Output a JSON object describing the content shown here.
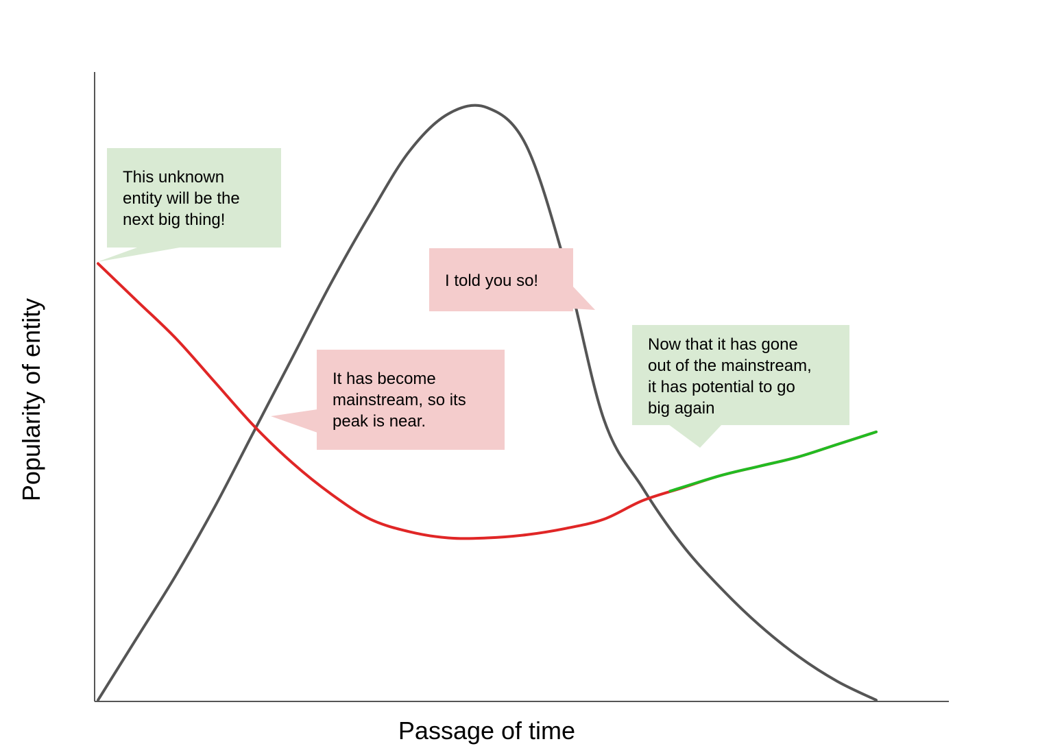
{
  "chart_data": {
    "type": "line",
    "title": "",
    "xlabel": "Passage of time",
    "ylabel": "Popularity of entity",
    "grid": false,
    "legend": "none",
    "series": [
      {
        "kind": "mainstream-popularity",
        "color": "#555555",
        "x": [
          0,
          1,
          2,
          3,
          4,
          5,
          6,
          7,
          8,
          9,
          10,
          11,
          12,
          13,
          14,
          15,
          16,
          17,
          18,
          19,
          20
        ],
        "y": [
          0,
          10,
          20,
          31,
          43,
          55,
          67,
          78,
          88,
          94,
          95,
          89,
          70,
          45,
          34,
          25,
          18,
          12,
          7,
          3,
          0
        ]
      },
      {
        "kind": "hipster-opinion",
        "color": "#e02626",
        "x": [
          0,
          1,
          2,
          3,
          4,
          5,
          6,
          7,
          8,
          9,
          10,
          11,
          12,
          13,
          14,
          15,
          16,
          17,
          18,
          19,
          20
        ],
        "y": [
          70,
          64,
          58,
          51,
          44,
          38,
          33,
          29,
          27,
          26,
          26,
          26.5,
          27.5,
          29,
          32,
          34,
          36,
          37.5,
          39,
          41,
          43
        ]
      },
      {
        "kind": "comeback-potential",
        "color": "#22bb22",
        "x": [
          14.7,
          16,
          17,
          18,
          19,
          20
        ],
        "y": [
          33.5,
          36,
          37.5,
          39,
          41,
          43
        ]
      }
    ],
    "annotations": [
      {
        "text": [
          "This unknown",
          "entity will be the",
          "next big thing!"
        ],
        "color": "#d9ead3"
      },
      {
        "text": [
          "It has become",
          "mainstream, so its",
          "peak is near."
        ],
        "color": "#f4cccc"
      },
      {
        "text": [
          "I told you so!"
        ],
        "color": "#f4cccc"
      },
      {
        "text": [
          "Now that it has gone",
          "out of the mainstream,",
          "it has potential to go",
          "big again"
        ],
        "color": "#d9ead3"
      }
    ]
  }
}
